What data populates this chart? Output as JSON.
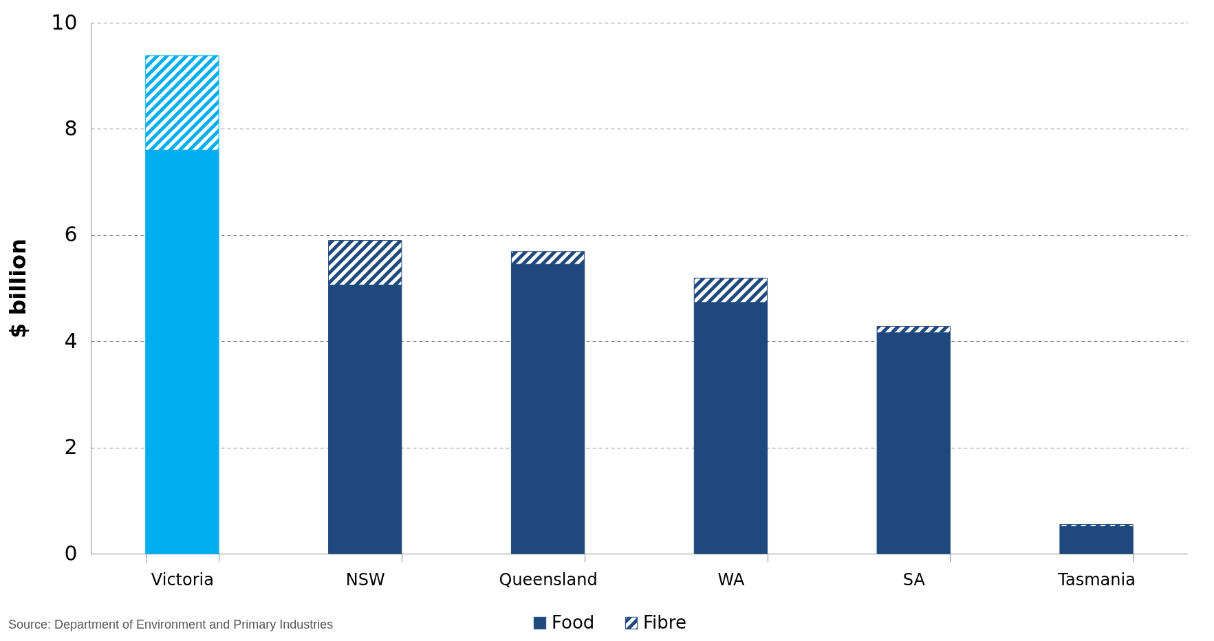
{
  "chart_data": {
    "type": "bar",
    "stacked": true,
    "ylabel": "$ billion",
    "categories": [
      "Victoria",
      "NSW",
      "Queensland",
      "WA",
      "SA",
      "Tasmania"
    ],
    "series": [
      {
        "name": "Food",
        "color": "#1f497d",
        "colors": [
          "#00aeef",
          "#1f497d",
          "#1f497d",
          "#1f497d",
          "#1f497d",
          "#1f497d"
        ],
        "values": [
          7.6,
          5.06,
          5.45,
          4.73,
          4.16,
          0.51
        ]
      },
      {
        "name": "Fibre",
        "color": "#1f497d",
        "colors": [
          "#00aeef",
          "#1f497d",
          "#1f497d",
          "#1f497d",
          "#1f497d",
          "#1f497d"
        ],
        "values": [
          1.78,
          0.84,
          0.24,
          0.46,
          0.12,
          0.04
        ]
      }
    ],
    "ylim": [
      0,
      10
    ],
    "yticks": [
      0,
      2,
      4,
      6,
      8,
      10
    ],
    "grid": "y",
    "legend": "bottom",
    "annotations": [
      "Source: Department of Environment and Primary Industries"
    ]
  }
}
